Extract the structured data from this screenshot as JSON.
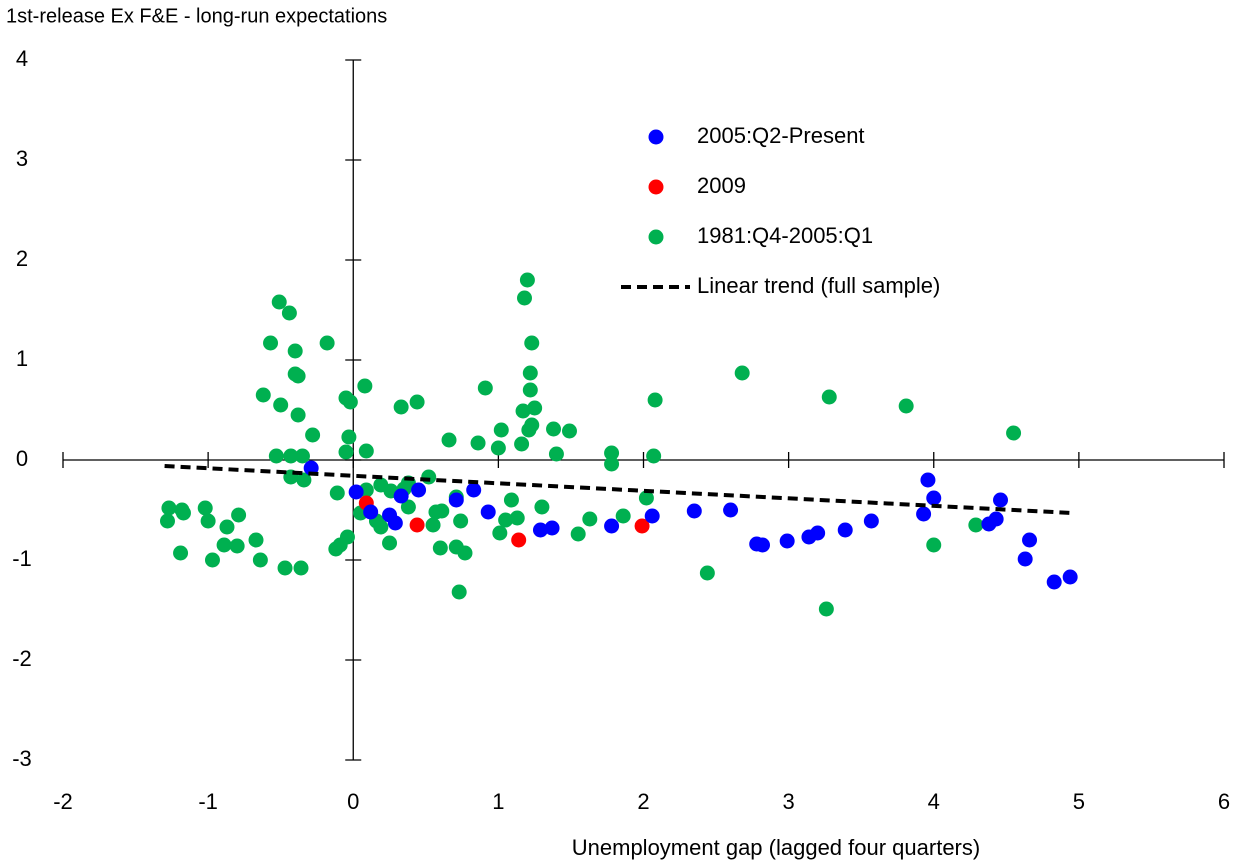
{
  "chart_data": {
    "type": "scatter",
    "title": "1st-release Ex F&E - long-run expectations",
    "x_label": "Unemployment gap (lagged four quarters)",
    "xlim": [
      -2,
      6
    ],
    "xticks": [
      -2,
      -1,
      0,
      1,
      2,
      3,
      4,
      5,
      6
    ],
    "ylim": [
      -3,
      4
    ],
    "yticks": [
      -3,
      -2,
      -1,
      0,
      1,
      2,
      3,
      4
    ],
    "legend": "upper right",
    "series": [
      {
        "name": "2005:Q2-Present",
        "color": "#0000ff",
        "x": [
          -0.29,
          0.02,
          0.12,
          0.25,
          0.29,
          0.33,
          0.45,
          0.71,
          0.83,
          0.93,
          1.29,
          1.37,
          1.78,
          2.06,
          2.35,
          2.6,
          2.78,
          2.82,
          2.99,
          3.14,
          3.2,
          3.39,
          3.57,
          3.93,
          3.96,
          4.0,
          4.38,
          4.43,
          4.46,
          4.66,
          4.63,
          4.83,
          4.94
        ],
        "values": [
          -0.08,
          -0.32,
          -0.52,
          -0.55,
          -0.63,
          -0.36,
          -0.3,
          -0.4,
          -0.3,
          -0.52,
          -0.7,
          -0.68,
          -0.66,
          -0.56,
          -0.51,
          -0.5,
          -0.84,
          -0.85,
          -0.81,
          -0.77,
          -0.73,
          -0.7,
          -0.61,
          -0.54,
          -0.2,
          -0.38,
          -0.64,
          -0.59,
          -0.4,
          -0.8,
          -0.99,
          -1.22,
          -1.17
        ]
      },
      {
        "name": "2009",
        "color": "#ff0000",
        "x": [
          0.09,
          0.44,
          1.14,
          1.99
        ],
        "values": [
          -0.43,
          -0.65,
          -0.8,
          -0.66
        ]
      },
      {
        "name": "1981:Q4-2005:Q1",
        "color": "#00b050",
        "x": [
          -1.28,
          -1.27,
          -1.18,
          -1.17,
          -1.19,
          -1.02,
          -1.0,
          -0.97,
          -0.89,
          -0.87,
          -0.79,
          -0.8,
          -0.67,
          -0.64,
          -0.62,
          -0.57,
          -0.51,
          -0.5,
          -0.53,
          -0.47,
          -0.44,
          -0.43,
          -0.43,
          -0.4,
          -0.4,
          -0.38,
          -0.38,
          -0.36,
          -0.34,
          -0.35,
          -0.28,
          -0.18,
          -0.11,
          -0.12,
          -0.09,
          -0.05,
          -0.04,
          -0.03,
          -0.02,
          -0.05,
          0.05,
          0.08,
          0.09,
          0.09,
          0.16,
          0.19,
          0.19,
          0.25,
          0.26,
          0.33,
          0.35,
          0.38,
          0.38,
          0.44,
          0.52,
          0.55,
          0.57,
          0.61,
          0.6,
          0.66,
          0.71,
          0.71,
          0.73,
          0.74,
          0.77,
          0.86,
          0.91,
          1.0,
          1.01,
          1.02,
          1.05,
          1.09,
          1.13,
          1.16,
          1.17,
          1.18,
          1.2,
          1.21,
          1.22,
          1.22,
          1.23,
          1.23,
          1.25,
          1.3,
          1.38,
          1.4,
          1.49,
          1.55,
          1.63,
          1.78,
          1.78,
          1.86,
          2.02,
          2.07,
          2.08,
          2.44,
          2.68,
          3.26,
          3.28,
          3.81,
          4.0,
          4.29,
          4.55
        ],
        "values": [
          -0.61,
          -0.48,
          -0.5,
          -0.53,
          -0.93,
          -0.48,
          -0.61,
          -1.0,
          -0.85,
          -0.67,
          -0.55,
          -0.86,
          -0.8,
          -1.0,
          0.65,
          1.17,
          1.58,
          0.55,
          0.04,
          -1.08,
          1.47,
          0.04,
          -0.17,
          1.09,
          0.86,
          0.84,
          0.45,
          -1.08,
          -0.2,
          0.04,
          0.25,
          1.17,
          -0.33,
          -0.89,
          -0.85,
          0.62,
          -0.77,
          0.23,
          0.58,
          0.08,
          -0.53,
          0.74,
          0.09,
          -0.3,
          -0.61,
          -0.67,
          -0.25,
          -0.83,
          -0.31,
          0.53,
          -0.29,
          -0.23,
          -0.47,
          0.58,
          -0.17,
          -0.65,
          -0.52,
          -0.51,
          -0.88,
          0.2,
          -0.37,
          -0.87,
          -1.32,
          -0.61,
          -0.93,
          0.17,
          0.72,
          0.12,
          -0.73,
          0.3,
          -0.6,
          -0.4,
          -0.58,
          0.16,
          0.49,
          1.62,
          1.8,
          0.3,
          0.87,
          0.7,
          0.35,
          1.17,
          0.52,
          -0.47,
          0.31,
          0.06,
          0.29,
          -0.74,
          -0.59,
          0.07,
          -0.04,
          -0.56,
          -0.38,
          0.04,
          0.6,
          -1.13,
          0.87,
          -1.49,
          0.63,
          0.54,
          -0.85,
          -0.65,
          0.27
        ]
      },
      {
        "name": "Linear trend (full sample)",
        "color": "#000000",
        "style": "dashed",
        "x": [
          -1.3,
          4.95
        ],
        "values": [
          -0.06,
          -0.53
        ]
      }
    ]
  }
}
